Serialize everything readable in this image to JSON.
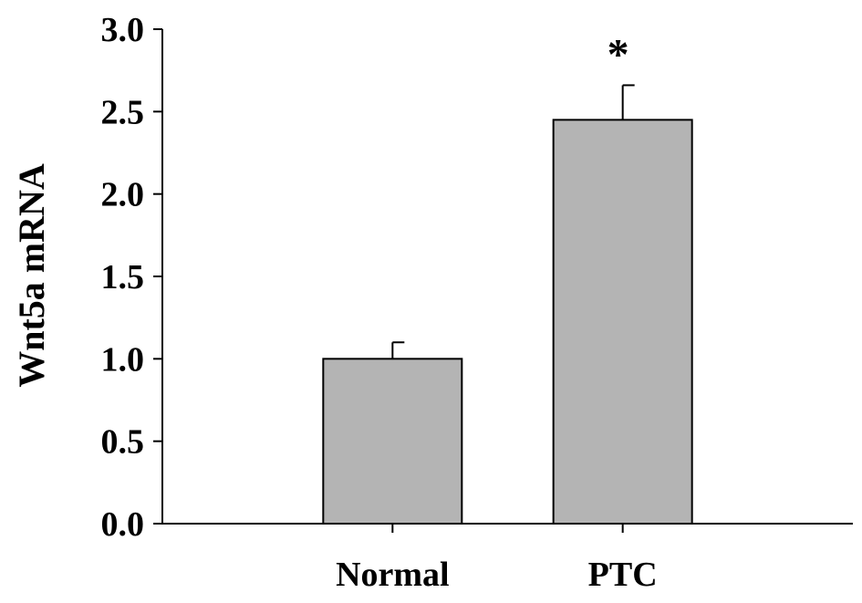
{
  "chart_data": {
    "type": "bar",
    "title": "",
    "xlabel": "",
    "ylabel": "Wnt5a mRNA",
    "categories": [
      "Normal",
      "PTC"
    ],
    "series": [
      {
        "values": [
          1.0,
          2.45
        ],
        "error": [
          0.1,
          0.21
        ]
      }
    ],
    "annotations": [
      "",
      "*"
    ],
    "ylim": [
      0,
      3.0
    ],
    "yticks": [
      "0.0",
      "0.5",
      "1.0",
      "1.5",
      "2.0",
      "2.5",
      "3.0"
    ],
    "ytick_values": [
      0,
      0.5,
      1.0,
      1.5,
      2.0,
      2.5,
      3.0
    ],
    "grid": false,
    "bar_color": "#b4b4b4",
    "edge_color": "#000000"
  }
}
